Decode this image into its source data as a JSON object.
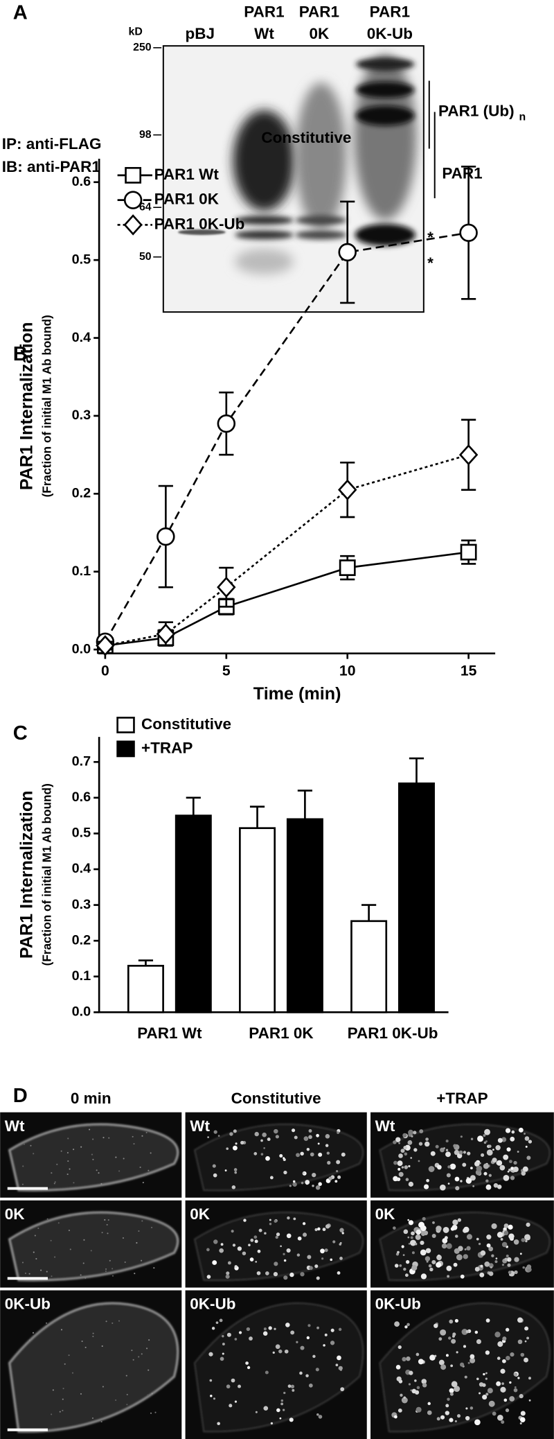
{
  "panel_labels": [
    "A",
    "B",
    "C",
    "D"
  ],
  "blot": {
    "unit": "kD",
    "markers": [
      250,
      98,
      64,
      50
    ],
    "lanes": [
      [
        "pBJ"
      ],
      [
        "PAR1",
        "Wt"
      ],
      [
        "PAR1",
        "0K"
      ],
      [
        "PAR1",
        "0K-Ub"
      ]
    ],
    "left_labels": [
      "IP: anti-FLAG",
      "IB: anti-PAR1"
    ],
    "ub_label": "PAR1 (Ub)",
    "ub_subscript": "n",
    "par1_label": "PAR1",
    "band_marks": [
      "*",
      "*"
    ]
  },
  "chart_data": [
    {
      "type": "line",
      "title": "Constitutive",
      "xlabel": "Time (min)",
      "ylabel": "PAR1 Internalization",
      "ylabel_note": "(Fraction of initial M1 Ab bound)",
      "x": [
        0,
        2.5,
        5,
        10,
        15
      ],
      "xlim": [
        -0.25,
        16.1
      ],
      "xticks": [
        0,
        5,
        10,
        15
      ],
      "ylim": [
        -0.005,
        0.63
      ],
      "yticks": [
        {
          "value": 0,
          "label": "0.0"
        },
        0.1,
        0.2,
        0.3,
        0.4,
        0.5,
        0.6
      ],
      "legend": "upper left",
      "series": [
        {
          "name": "PAR1 Wt",
          "color": "#000000",
          "marker": "square",
          "line_style": "solid",
          "values": [
            0.005,
            0.015,
            0.055,
            0.105,
            0.125
          ],
          "errors": [
            0.005,
            0.01,
            0.01,
            0.015,
            0.015
          ]
        },
        {
          "name": "PAR1 0K",
          "color": "#000000",
          "marker": "circle",
          "line_style": "dashed",
          "values": [
            0.01,
            0.145,
            0.29,
            0.51,
            0.535
          ],
          "errors": [
            0.005,
            0.065,
            0.04,
            0.065,
            0.085
          ]
        },
        {
          "name": "PAR1 0K-Ub",
          "color": "#000000",
          "marker": "diamond",
          "line_style": "dotted",
          "values": [
            0.005,
            0.02,
            0.08,
            0.205,
            0.25
          ],
          "errors": [
            0.005,
            0.015,
            0.025,
            0.035,
            0.045
          ]
        }
      ]
    },
    {
      "type": "bar",
      "ylabel": "PAR1 Internalization",
      "ylabel_note": "(Fraction of initial M1 Ab bound)",
      "categories": [
        "PAR1 Wt",
        "PAR1 0K",
        "PAR1 0K-Ub"
      ],
      "ylim": [
        0,
        0.77
      ],
      "yticks": [
        {
          "value": 0,
          "label": "0.0"
        },
        0.1,
        0.2,
        0.3,
        0.4,
        0.5,
        0.6,
        0.7
      ],
      "legend": "upper left",
      "series": [
        {
          "name": "Constitutive",
          "color": "#ffffff",
          "values": [
            0.13,
            0.515,
            0.255
          ],
          "errors": [
            0.015,
            0.06,
            0.045
          ]
        },
        {
          "name": "+TRAP",
          "color": "#000000",
          "values": [
            0.55,
            0.54,
            0.64
          ],
          "errors": [
            0.05,
            0.08,
            0.07
          ]
        }
      ]
    }
  ],
  "micrographs": {
    "columns": [
      "0 min",
      "Constitutive",
      "+TRAP"
    ],
    "rows": [
      [
        "Wt",
        "Wt",
        "Wt"
      ],
      [
        "0K",
        "0K",
        "0K"
      ],
      [
        "0K-Ub",
        "0K-Ub",
        "0K-Ub"
      ]
    ]
  }
}
